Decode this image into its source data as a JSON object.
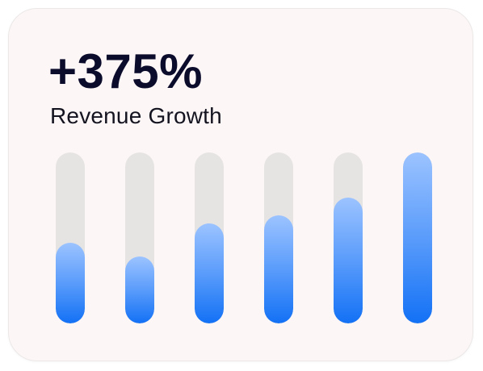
{
  "card": {
    "metric": "+375%",
    "label": "Revenue Growth"
  },
  "chart_data": {
    "type": "bar",
    "orientation": "vertical",
    "style": "rounded progress bars with grey tracks and blue gradient fills",
    "values": [
      0.47,
      0.39,
      0.585,
      0.63,
      0.735,
      1.0
    ],
    "value_unit": "fraction of track filled",
    "ylim": [
      0,
      1
    ],
    "grid": false,
    "legend": "none",
    "track_color": "#e6e4e3",
    "fill_gradient": [
      "#9cc3ff",
      "#1371f5"
    ]
  },
  "colors": {
    "card_background": "#fcf6f6",
    "metric_text": "#0b0b2b",
    "label_text": "#141420"
  }
}
